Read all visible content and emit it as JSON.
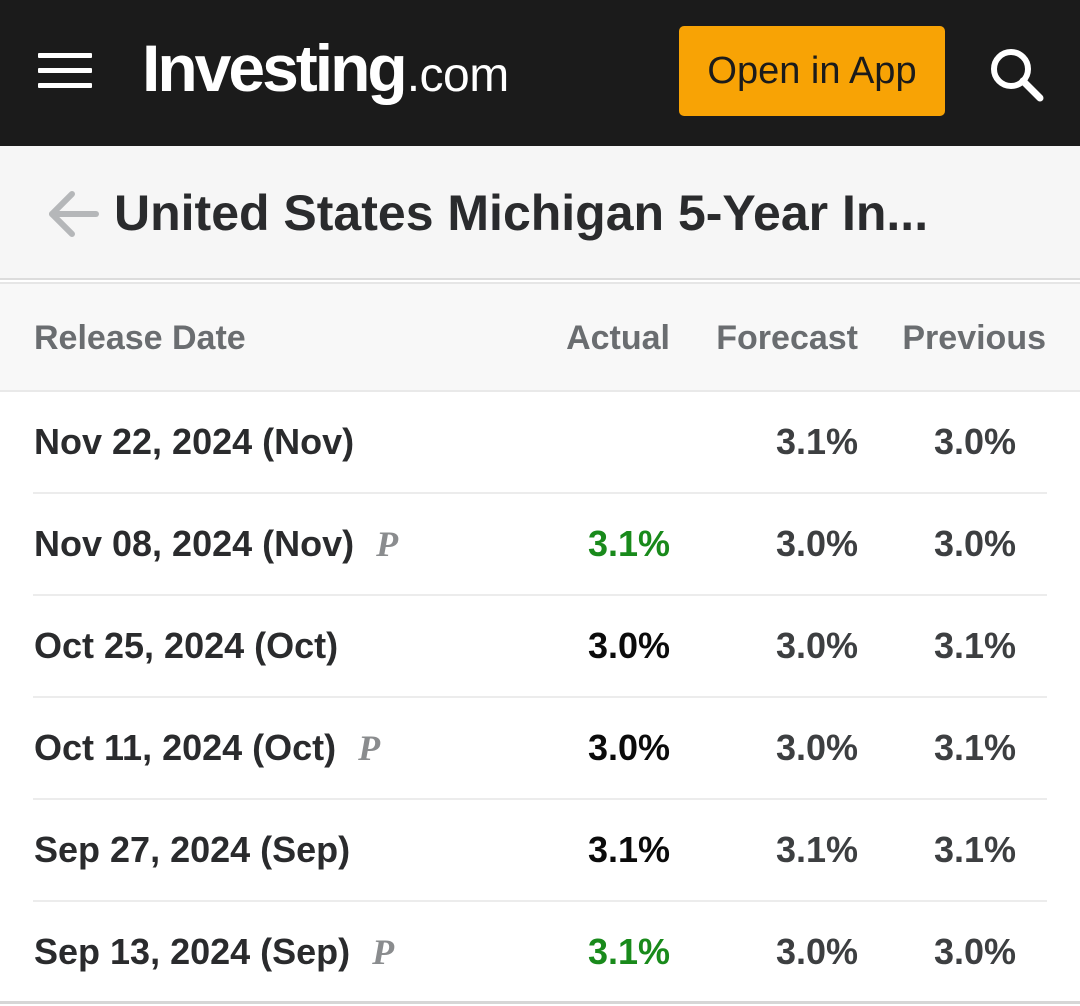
{
  "header": {
    "logo_brand": "Investing",
    "logo_tld": ".com",
    "open_app_label": "Open in App",
    "icons": {
      "menu": "hamburger-menu-icon",
      "search": "search-icon",
      "back": "back-arrow-icon"
    },
    "colors": {
      "topbar": "#1b1b1b",
      "button": "#f8a305",
      "positive": "#198a1b"
    }
  },
  "page": {
    "title": "United States Michigan 5-Year In..."
  },
  "table": {
    "columns": {
      "release_date": "Release Date",
      "actual": "Actual",
      "forecast": "Forecast",
      "previous": "Previous"
    },
    "rows": [
      {
        "date": "Nov 22, 2024 (Nov)",
        "preliminary": "",
        "actual": "",
        "forecast": "3.1%",
        "previous": "3.0%"
      },
      {
        "date": "Nov 08, 2024 (Nov)",
        "preliminary": "P",
        "actual": "3.1%",
        "forecast": "3.0%",
        "previous": "3.0%"
      },
      {
        "date": "Oct 25, 2024 (Oct)",
        "preliminary": "",
        "actual": "3.0%",
        "forecast": "3.0%",
        "previous": "3.1%"
      },
      {
        "date": "Oct 11, 2024 (Oct)",
        "preliminary": "P",
        "actual": "3.0%",
        "forecast": "3.0%",
        "previous": "3.1%"
      },
      {
        "date": "Sep 27, 2024 (Sep)",
        "preliminary": "",
        "actual": "3.1%",
        "forecast": "3.1%",
        "previous": "3.1%"
      },
      {
        "date": "Sep 13, 2024 (Sep)",
        "preliminary": "P",
        "actual": "3.1%",
        "forecast": "3.0%",
        "previous": "3.0%"
      }
    ]
  }
}
